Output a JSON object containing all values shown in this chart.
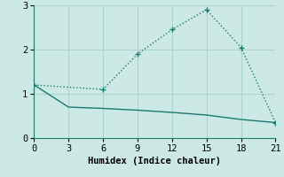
{
  "xlabel": "Humidex (Indice chaleur)",
  "background_color": "#cce9e5",
  "grid_color": "#add4cf",
  "line_color": "#1a7a6e",
  "xlim": [
    0,
    21
  ],
  "ylim": [
    0,
    3
  ],
  "xticks": [
    0,
    3,
    6,
    9,
    12,
    15,
    18,
    21
  ],
  "yticks": [
    0,
    1,
    2,
    3
  ],
  "line1_x": [
    0,
    3,
    6,
    9,
    12,
    15,
    18,
    21
  ],
  "line1_y": [
    1.2,
    0.7,
    0.67,
    0.63,
    0.58,
    0.52,
    0.42,
    0.35
  ],
  "line2_x": [
    0,
    6,
    9,
    12,
    15,
    18,
    21
  ],
  "line2_y": [
    1.2,
    1.1,
    1.9,
    2.45,
    2.9,
    2.05,
    0.35
  ]
}
